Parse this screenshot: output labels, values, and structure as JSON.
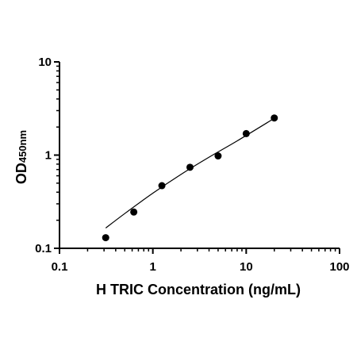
{
  "chart_data": {
    "type": "scatter",
    "x_scale": "log",
    "y_scale": "log",
    "xlim": [
      0.1,
      100
    ],
    "ylim": [
      0.1,
      10
    ],
    "x_ticks": [
      "0.1",
      "1",
      "10",
      "100"
    ],
    "y_ticks": [
      "0.1",
      "1",
      "10"
    ],
    "xlabel": "H TRIC Concentration (ng/mL)",
    "ylabel_main": "OD",
    "ylabel_sub": "450nm",
    "grid": false,
    "legend": "none",
    "series": [
      {
        "x": [
          0.3125,
          0.625,
          1.25,
          2.5,
          5,
          10,
          20
        ],
        "y": [
          0.13,
          0.245,
          0.47,
          0.74,
          0.98,
          1.7,
          2.5
        ]
      }
    ],
    "fit_curve": {
      "x": [
        0.3125,
        0.5,
        1,
        2,
        4,
        8,
        20
      ],
      "y": [
        0.165,
        0.236,
        0.39,
        0.62,
        0.95,
        1.42,
        2.48
      ]
    }
  }
}
